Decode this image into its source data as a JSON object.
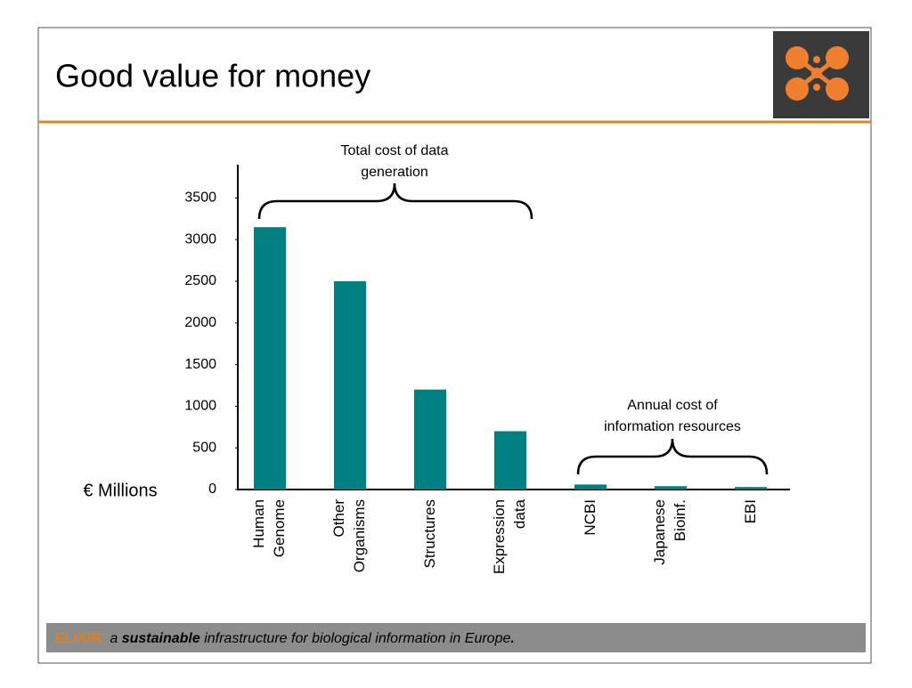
{
  "chart_data": {
    "type": "bar",
    "title": "Good value for money",
    "categories": [
      [
        "Human",
        "Genome"
      ],
      [
        "Other",
        "Organisms"
      ],
      [
        "Structures"
      ],
      [
        "Expression",
        "data"
      ],
      [
        "NCBI"
      ],
      [
        "Japanese",
        "Bioinf."
      ],
      [
        "EBI"
      ]
    ],
    "values": [
      3150,
      2500,
      1200,
      700,
      60,
      40,
      30
    ],
    "color": "#008080",
    "ylim": [
      0,
      3900
    ],
    "yticks": [
      0,
      500,
      1000,
      1500,
      2000,
      2500,
      3000,
      3500
    ],
    "y_label": "€ Millions",
    "annotations": [
      [
        "Total cost of data",
        "generation"
      ],
      [
        "Annual cost of",
        "information resources"
      ]
    ]
  },
  "footer": {
    "org": "ELIXIR:",
    "a": "a",
    "emphasis": "sustainable",
    "rest": "infrastructure for biological information in Europe",
    "end": "."
  }
}
